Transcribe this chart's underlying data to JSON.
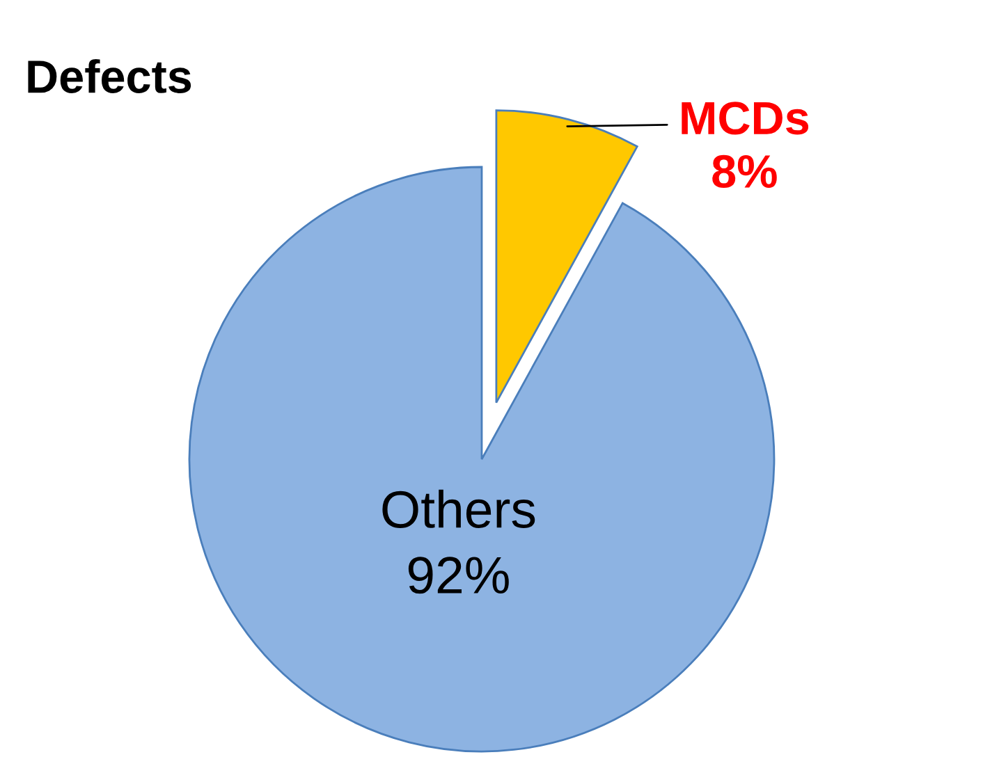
{
  "chart_data": {
    "type": "pie",
    "title": "Defects",
    "categories": [
      "MCDs",
      "Others"
    ],
    "values": [
      8,
      92
    ],
    "value_labels": [
      "8%",
      "92%"
    ],
    "colors": [
      "#ffc800",
      "#8db3e2"
    ]
  }
}
